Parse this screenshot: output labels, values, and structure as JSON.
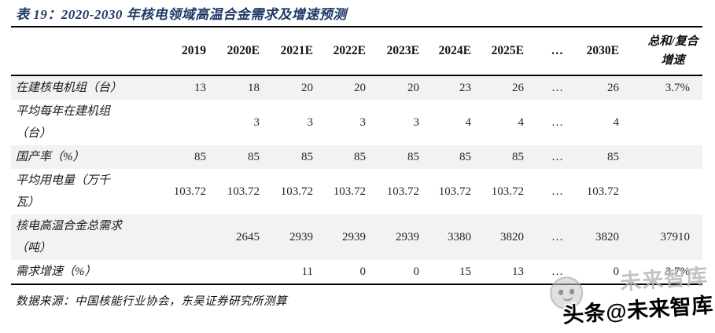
{
  "title": "表 19：2020-2030 年核电领域高温合金需求及增速预测",
  "table": {
    "year_headers": [
      "2019",
      "2020E",
      "2021E",
      "2022E",
      "2023E",
      "2024E",
      "2025E",
      "…",
      "2030E"
    ],
    "total_header_lines": [
      "总和/复合",
      "增速"
    ],
    "rows": [
      {
        "label": "在建核电机组（台）",
        "values": [
          "13",
          "18",
          "20",
          "20",
          "20",
          "23",
          "26",
          "…",
          "26",
          "3.7%"
        ],
        "shaded": true
      },
      {
        "label": "平均每年在建机组\n（台）",
        "values": [
          "",
          "3",
          "3",
          "3",
          "3",
          "4",
          "4",
          "…",
          "4",
          ""
        ],
        "shaded": false
      },
      {
        "label": "国产率（%）",
        "values": [
          "85",
          "85",
          "85",
          "85",
          "85",
          "85",
          "85",
          "…",
          "85",
          ""
        ],
        "shaded": true
      },
      {
        "label": "平均用电量（万千\n瓦）",
        "values": [
          "103.72",
          "103.72",
          "103.72",
          "103.72",
          "103.72",
          "103.72",
          "103.72",
          "…",
          "103.72",
          ""
        ],
        "shaded": false
      },
      {
        "label": "核电高温合金总需求\n（吨）",
        "values": [
          "",
          "2645",
          "2939",
          "2939",
          "2939",
          "3380",
          "3820",
          "…",
          "3820",
          "37910"
        ],
        "shaded": true
      },
      {
        "label": "需求增速（%）",
        "values": [
          "",
          "",
          "11",
          "0",
          "0",
          "15",
          "13",
          "…",
          "0",
          "3.7%"
        ],
        "shaded": false
      }
    ]
  },
  "footer": {
    "source": "数据来源：中国核能行业协会，东吴证券研究所测算"
  },
  "watermark": {
    "ghost_text": "未来智库",
    "text": "头条@未来智库"
  },
  "colors": {
    "title": "#1F3864",
    "row_shade": "#F2F2F2",
    "line": "#000000"
  }
}
